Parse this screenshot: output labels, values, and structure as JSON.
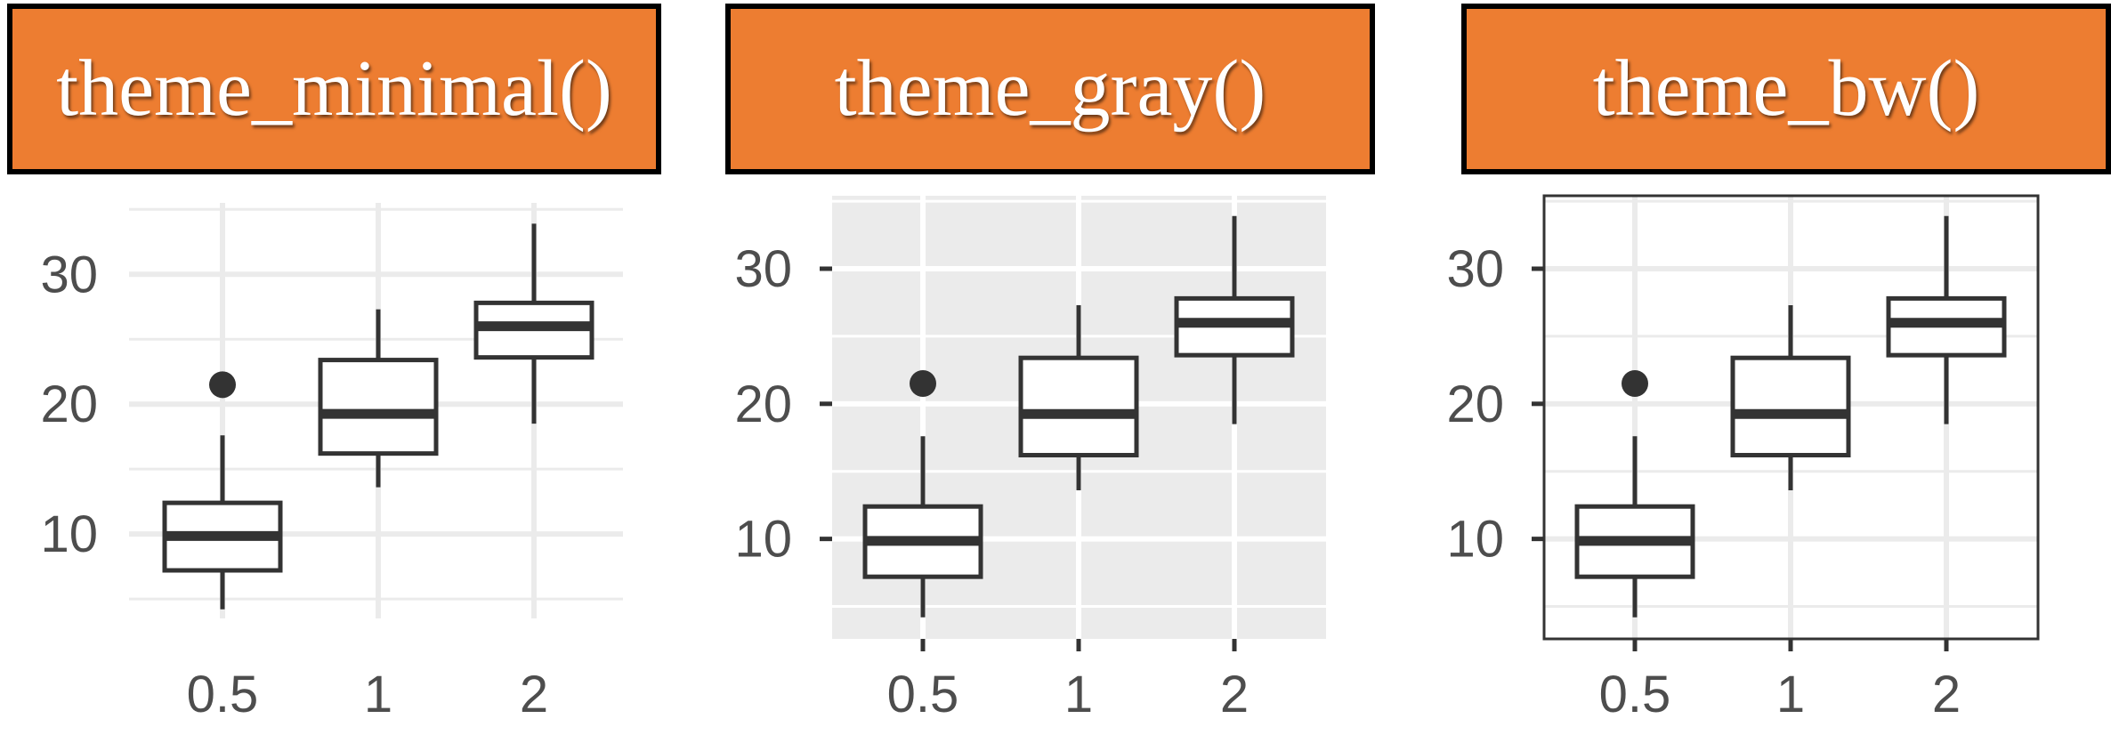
{
  "chart_data": [
    {
      "type": "boxplot",
      "title": "theme_minimal()",
      "theme": "minimal",
      "background": "#ffffff",
      "grid_color": "#ebebeb",
      "border": false,
      "axis_ticks": false,
      "categories": [
        "0.5",
        "1",
        "2"
      ],
      "y_ticks": [
        10,
        20,
        30
      ],
      "y_tick_labels": [
        "10",
        "20",
        "30"
      ],
      "ylim": [
        3.5,
        35.5
      ],
      "boxes": [
        {
          "x": "0.5",
          "whisker_low": 4.2,
          "q1": 7.2,
          "median": 9.85,
          "q3": 12.4,
          "whisker_high": 17.6,
          "outliers": [
            21.5
          ]
        },
        {
          "x": "1",
          "whisker_low": 13.6,
          "q1": 16.2,
          "median": 19.25,
          "q3": 23.4,
          "whisker_high": 27.3,
          "outliers": []
        },
        {
          "x": "2",
          "whisker_low": 18.5,
          "q1": 23.6,
          "median": 26.0,
          "q3": 27.8,
          "whisker_high": 33.9,
          "outliers": []
        }
      ]
    },
    {
      "type": "boxplot",
      "title": "theme_gray()",
      "theme": "gray",
      "background": "#ebebeb",
      "grid_color": "#ffffff",
      "border": false,
      "axis_ticks": true,
      "categories": [
        "0.5",
        "1",
        "2"
      ],
      "y_ticks": [
        10,
        20,
        30
      ],
      "y_tick_labels": [
        "10",
        "20",
        "30"
      ],
      "ylim": [
        2.6,
        35.4
      ],
      "boxes": [
        {
          "x": "0.5",
          "whisker_low": 4.2,
          "q1": 7.2,
          "median": 9.85,
          "q3": 12.4,
          "whisker_high": 17.6,
          "outliers": [
            21.5
          ]
        },
        {
          "x": "1",
          "whisker_low": 13.6,
          "q1": 16.2,
          "median": 19.25,
          "q3": 23.4,
          "whisker_high": 27.3,
          "outliers": []
        },
        {
          "x": "2",
          "whisker_low": 18.5,
          "q1": 23.6,
          "median": 26.0,
          "q3": 27.8,
          "whisker_high": 33.9,
          "outliers": []
        }
      ]
    },
    {
      "type": "boxplot",
      "title": "theme_bw()",
      "theme": "bw",
      "background": "#ffffff",
      "grid_color": "#ebebeb",
      "border": true,
      "axis_ticks": true,
      "categories": [
        "0.5",
        "1",
        "2"
      ],
      "y_ticks": [
        10,
        20,
        30
      ],
      "y_tick_labels": [
        "10",
        "20",
        "30"
      ],
      "ylim": [
        2.6,
        35.4
      ],
      "boxes": [
        {
          "x": "0.5",
          "whisker_low": 4.2,
          "q1": 7.2,
          "median": 9.85,
          "q3": 12.4,
          "whisker_high": 17.6,
          "outliers": [
            21.5
          ]
        },
        {
          "x": "1",
          "whisker_low": 13.6,
          "q1": 16.2,
          "median": 19.25,
          "q3": 23.4,
          "whisker_high": 27.3,
          "outliers": []
        },
        {
          "x": "2",
          "whisker_low": 18.5,
          "q1": 23.6,
          "median": 26.0,
          "q3": 27.8,
          "whisker_high": 33.9,
          "outliers": []
        }
      ]
    }
  ],
  "colors": {
    "title_fill": "#ED7D31",
    "title_border": "#000000",
    "title_text": "#ffffff",
    "box_line": "#333333",
    "tick_text": "#4d4d4d"
  }
}
